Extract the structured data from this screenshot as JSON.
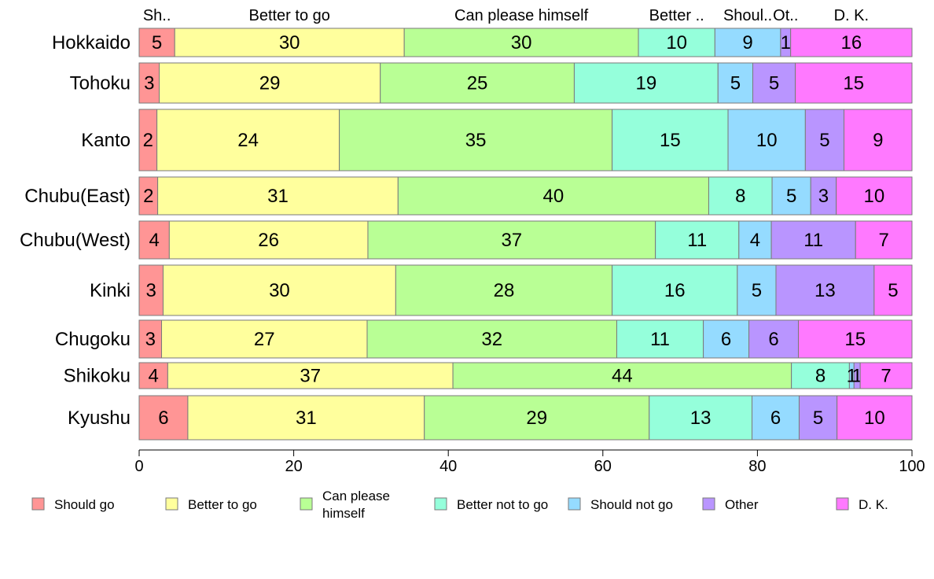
{
  "chart_data": {
    "type": "bar",
    "orientation": "horizontal",
    "stacked": true,
    "variable_width": true,
    "title": "",
    "xlabel": "",
    "ylabel": "",
    "xlim": [
      0,
      100
    ],
    "x_ticks": [
      0,
      20,
      40,
      60,
      80,
      100
    ],
    "grid": false,
    "legend_position": "bottom",
    "categories": [
      "Hokkaido",
      "Tohoku",
      "Kanto",
      "Chubu(East)",
      "Chubu(West)",
      "Kinki",
      "Chugoku",
      "Shikoku",
      "Kyushu"
    ],
    "top_labels": [
      "Sh..",
      "Better to go",
      "Can please himself",
      "Better ..",
      "Shoul..",
      "Ot..",
      "D. K."
    ],
    "series": [
      {
        "name": "Should go",
        "color": "#FF9595",
        "values": [
          4.6,
          2.6,
          2.3,
          2.4,
          3.9,
          3.1,
          2.9,
          3.7,
          6.3
        ],
        "labels": [
          "5",
          "3",
          "2",
          "2",
          "4",
          "3",
          "3",
          "4",
          "6"
        ]
      },
      {
        "name": "Better to go",
        "color": "#FFFF9D",
        "values": [
          29.7,
          28.6,
          23.6,
          31.1,
          25.7,
          30.1,
          26.6,
          36.9,
          30.6
        ],
        "labels": [
          "30",
          "29",
          "24",
          "31",
          "26",
          "30",
          "27",
          "37",
          "31"
        ]
      },
      {
        "name": "Can please himself",
        "color": "#B9FF95",
        "values": [
          30.3,
          25.1,
          35.3,
          40.2,
          37.2,
          28.0,
          32.3,
          43.8,
          29.1
        ],
        "labels": [
          "30",
          "25",
          "35",
          "40",
          "37",
          "28",
          "32",
          "44",
          "29"
        ]
      },
      {
        "name": "Better not to go",
        "color": "#95FFDB",
        "values": [
          9.9,
          18.6,
          15.0,
          8.2,
          10.8,
          16.2,
          11.2,
          7.5,
          13.3
        ],
        "labels": [
          "10",
          "19",
          "15",
          "8",
          "11",
          "16",
          "11",
          "8",
          "13"
        ]
      },
      {
        "name": "Should not go",
        "color": "#95DBFF",
        "values": [
          8.5,
          4.5,
          10.0,
          5.0,
          4.2,
          5.0,
          5.9,
          0.6,
          6.1
        ],
        "labels": [
          "9",
          "5",
          "10",
          "5",
          "4",
          "5",
          "6",
          "1",
          "6"
        ]
      },
      {
        "name": "Other",
        "color": "#B995FF",
        "values": [
          1.3,
          5.5,
          5.0,
          3.3,
          10.9,
          12.7,
          6.4,
          0.8,
          4.9
        ],
        "labels": [
          "1",
          "5",
          "5",
          "3",
          "11",
          "13",
          "6",
          "1",
          "5"
        ]
      },
      {
        "name": "D. K.",
        "color": "#FF79FF",
        "values": [
          15.7,
          15.1,
          8.8,
          9.8,
          7.3,
          4.9,
          14.7,
          6.7,
          9.7
        ],
        "labels": [
          "16",
          "15",
          "9",
          "10",
          "7",
          "5",
          "15",
          "7",
          "10"
        ]
      }
    ],
    "legend": [
      {
        "lines": [
          "Should go"
        ],
        "color": "#FF9595"
      },
      {
        "lines": [
          "Better to go"
        ],
        "color": "#FFFF9D"
      },
      {
        "lines": [
          "Can please",
          "himself"
        ],
        "color": "#B9FF95"
      },
      {
        "lines": [
          "Better not to go"
        ],
        "color": "#95FFDB"
      },
      {
        "lines": [
          "Should not go"
        ],
        "color": "#95DBFF"
      },
      {
        "lines": [
          "Other"
        ],
        "color": "#B995FF"
      },
      {
        "lines": [
          "D. K."
        ],
        "color": "#FF79FF"
      }
    ]
  }
}
